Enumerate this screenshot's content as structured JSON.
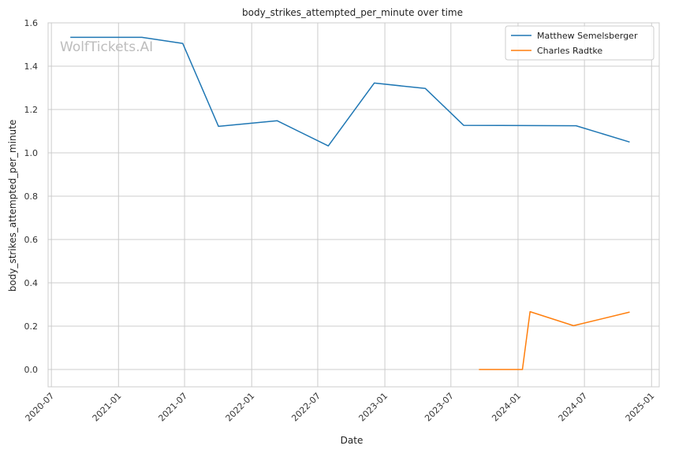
{
  "chart_data": {
    "type": "line",
    "title": "body_strikes_attempted_per_minute over time",
    "xlabel": "Date",
    "ylabel": "body_strikes_attempted_per_minute",
    "x_is_date": true,
    "xlim": [
      "2020-06-22",
      "2025-01-22"
    ],
    "ylim": [
      -0.08,
      1.6
    ],
    "x_ticks": [
      "2020-07-01",
      "2021-01-01",
      "2021-07-01",
      "2022-01-01",
      "2022-07-01",
      "2023-01-01",
      "2023-07-01",
      "2024-01-01",
      "2024-07-01",
      "2025-01-01"
    ],
    "x_tick_labels": [
      "2020-07",
      "2021-01",
      "2021-07",
      "2022-01",
      "2022-07",
      "2023-01",
      "2023-07",
      "2024-01",
      "2024-07",
      "2025-01"
    ],
    "y_ticks": [
      0.0,
      0.2,
      0.4,
      0.6,
      0.8,
      1.0,
      1.2,
      1.4,
      1.6
    ],
    "y_tick_labels": [
      "0.0",
      "0.2",
      "0.4",
      "0.6",
      "0.8",
      "1.0",
      "1.2",
      "1.4",
      "1.6"
    ],
    "grid": true,
    "legend_position": "top-right",
    "watermark": "WolfTickets.AI",
    "series": [
      {
        "name": "Matthew Semelsberger",
        "color": "#1f77b4",
        "points": [
          {
            "x": "2020-08-22",
            "y": 1.533
          },
          {
            "x": "2021-03-06",
            "y": 1.533
          },
          {
            "x": "2021-06-26",
            "y": 1.505
          },
          {
            "x": "2021-10-02",
            "y": 1.122
          },
          {
            "x": "2022-03-12",
            "y": 1.148
          },
          {
            "x": "2022-07-30",
            "y": 1.032
          },
          {
            "x": "2022-12-03",
            "y": 1.322
          },
          {
            "x": "2023-04-22",
            "y": 1.297
          },
          {
            "x": "2023-08-05",
            "y": 1.127
          },
          {
            "x": "2024-06-08",
            "y": 1.125
          },
          {
            "x": "2024-11-02",
            "y": 1.05
          }
        ]
      },
      {
        "name": "Charles Radtke",
        "color": "#ff7f0e",
        "points": [
          {
            "x": "2023-09-16",
            "y": 0.0
          },
          {
            "x": "2024-01-13",
            "y": 0.0
          },
          {
            "x": "2024-02-03",
            "y": 0.267
          },
          {
            "x": "2024-06-01",
            "y": 0.202
          },
          {
            "x": "2024-11-02",
            "y": 0.265
          }
        ]
      }
    ]
  }
}
